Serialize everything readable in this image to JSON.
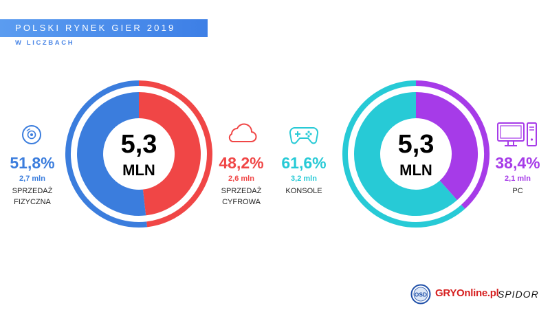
{
  "header": {
    "title": "POLSKI RYNEK GIER 2019",
    "subtitle": "W LICZBACH"
  },
  "colors": {
    "physical": "#3b7ddd",
    "digital": "#f04646",
    "consoles": "#27cad6",
    "pc": "#a63be8",
    "title_band": "#4a8be8"
  },
  "chart_data": [
    {
      "type": "pie",
      "variant": "donut",
      "center_value": "5,3",
      "center_unit": "MLN",
      "slices": [
        {
          "name": "SPRZEDAŻ FIZYCZNA",
          "percent": 51.8,
          "percent_label": "51,8%",
          "amount_label": "2,7 mln",
          "label_line1": "SPRZEDAŻ",
          "label_line2": "FIZYCZNA",
          "icon": "disc-icon"
        },
        {
          "name": "SPRZEDAŻ CYFROWA",
          "percent": 48.2,
          "percent_label": "48,2%",
          "amount_label": "2,6 mln",
          "label_line1": "SPRZEDAŻ",
          "label_line2": "CYFROWA",
          "icon": "cloud-icon"
        }
      ]
    },
    {
      "type": "pie",
      "variant": "donut",
      "center_value": "5,3",
      "center_unit": "MLN",
      "slices": [
        {
          "name": "KONSOLE",
          "percent": 61.6,
          "percent_label": "61,6%",
          "amount_label": "3,2 mln",
          "label_line1": "KONSOLE",
          "icon": "gamepad-icon"
        },
        {
          "name": "PC",
          "percent": 38.4,
          "percent_label": "38,4%",
          "amount_label": "2,1 mln",
          "label_line1": "PC",
          "icon": "computer-icon"
        }
      ]
    }
  ],
  "footer": {
    "logo_osd": "OSD",
    "logo_gry": "GRYOnline.pl",
    "logo_spidor": "SPIDOR"
  }
}
